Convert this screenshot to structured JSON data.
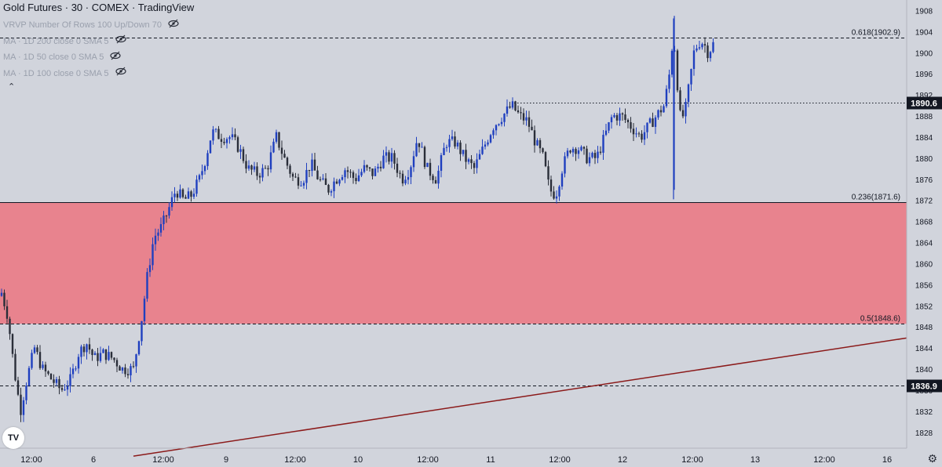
{
  "header": {
    "title": "Gold Futures · 30 · COMEX · TradingView"
  },
  "indicators": [
    {
      "label": "VRVP Number Of Rows 100 Up/Down 70",
      "icon": "eye-off-icon"
    },
    {
      "label": "MA · 1D 200 close 0 SMA 5",
      "icon": "eye-off-icon"
    },
    {
      "label": "MA · 1D 50 close 0 SMA 5",
      "icon": "eye-off-icon"
    },
    {
      "label": "MA · 1D 100 close 0 SMA 5",
      "icon": "eye-off-icon"
    }
  ],
  "logo_text": "TV",
  "colors": {
    "background": "#d1d4dc",
    "candle_up": "#1f3fbf",
    "candle_down": "#2a2e39",
    "zone_fill": "#e8838e",
    "trendline": "#8b1a1a",
    "axis_label_bg": "#131722"
  },
  "chart_data": {
    "type": "candlestick",
    "title": "Gold Futures · 30 · COMEX · TradingView",
    "ylim": [
      1825,
      1910
    ],
    "y_ticks": [
      1828,
      1832,
      1836,
      1840,
      1844,
      1848,
      1852,
      1856,
      1860,
      1864,
      1868,
      1872,
      1876,
      1880,
      1884,
      1888,
      1892,
      1896,
      1900,
      1904,
      1908
    ],
    "xlim": [
      0,
      1155
    ],
    "x_ticks": [
      {
        "x": 40,
        "label": "12:00"
      },
      {
        "x": 119,
        "label": "6"
      },
      {
        "x": 208,
        "label": "12:00"
      },
      {
        "x": 288,
        "label": "9"
      },
      {
        "x": 376,
        "label": "12:00"
      },
      {
        "x": 456,
        "label": "10"
      },
      {
        "x": 545,
        "label": "12:00"
      },
      {
        "x": 625,
        "label": "11"
      },
      {
        "x": 713,
        "label": "12:00"
      },
      {
        "x": 793,
        "label": "12"
      },
      {
        "x": 882,
        "label": "12:00"
      },
      {
        "x": 962,
        "label": "13"
      },
      {
        "x": 1050,
        "label": "12:00"
      },
      {
        "x": 1130,
        "label": "16"
      }
    ],
    "levels": [
      {
        "value": 1902.9,
        "label": "0.618(1902.9)",
        "style": "dashed"
      },
      {
        "value": 1890.6,
        "label": "1890.6",
        "style": "dotted",
        "tag": true,
        "start_x": 655
      },
      {
        "value": 1871.6,
        "label": "0.236(1871.6)",
        "style": "solid"
      },
      {
        "value": 1848.6,
        "label": "0.5(1848.6)",
        "style": "dashed"
      },
      {
        "value": 1836.9,
        "label": "1836.9",
        "style": "dashed",
        "tag": true
      }
    ],
    "zone": {
      "from": 1848.6,
      "to": 1871.6
    },
    "trendline": {
      "points": [
        [
          170,
          1823.5
        ],
        [
          1155,
          1845.9
        ]
      ]
    },
    "path_anchors": [
      [
        2,
        1854.5
      ],
      [
        10,
        1850
      ],
      [
        18,
        1840
      ],
      [
        26,
        1832
      ],
      [
        34,
        1838
      ],
      [
        44,
        1844
      ],
      [
        54,
        1840
      ],
      [
        66,
        1838
      ],
      [
        78,
        1836
      ],
      [
        90,
        1838
      ],
      [
        100,
        1843
      ],
      [
        110,
        1845
      ],
      [
        120,
        1842
      ],
      [
        132,
        1843
      ],
      [
        144,
        1842
      ],
      [
        156,
        1840
      ],
      [
        170,
        1840
      ],
      [
        180,
        1849
      ],
      [
        188,
        1858
      ],
      [
        196,
        1865
      ],
      [
        206,
        1867
      ],
      [
        214,
        1870
      ],
      [
        224,
        1874
      ],
      [
        234,
        1872
      ],
      [
        244,
        1873
      ],
      [
        254,
        1876
      ],
      [
        262,
        1880
      ],
      [
        270,
        1885
      ],
      [
        282,
        1884
      ],
      [
        294,
        1884
      ],
      [
        304,
        1882
      ],
      [
        316,
        1878
      ],
      [
        328,
        1877
      ],
      [
        340,
        1878
      ],
      [
        352,
        1884
      ],
      [
        362,
        1880
      ],
      [
        374,
        1876
      ],
      [
        386,
        1876
      ],
      [
        396,
        1879
      ],
      [
        406,
        1876
      ],
      [
        418,
        1874
      ],
      [
        428,
        1876
      ],
      [
        440,
        1878
      ],
      [
        452,
        1876
      ],
      [
        464,
        1878
      ],
      [
        476,
        1877
      ],
      [
        488,
        1880
      ],
      [
        500,
        1880
      ],
      [
        512,
        1876
      ],
      [
        522,
        1878
      ],
      [
        532,
        1884
      ],
      [
        544,
        1878
      ],
      [
        556,
        1876
      ],
      [
        568,
        1883
      ],
      [
        580,
        1883
      ],
      [
        592,
        1880
      ],
      [
        604,
        1878
      ],
      [
        616,
        1882
      ],
      [
        628,
        1886
      ],
      [
        640,
        1888
      ],
      [
        652,
        1890
      ],
      [
        662,
        1888
      ],
      [
        672,
        1887
      ],
      [
        682,
        1883
      ],
      [
        692,
        1880
      ],
      [
        700,
        1874
      ],
      [
        708,
        1873
      ],
      [
        716,
        1878
      ],
      [
        726,
        1882
      ],
      [
        736,
        1882
      ],
      [
        748,
        1880
      ],
      [
        760,
        1880
      ],
      [
        770,
        1884
      ],
      [
        780,
        1888
      ],
      [
        792,
        1888
      ],
      [
        804,
        1886
      ],
      [
        816,
        1884
      ],
      [
        826,
        1886
      ],
      [
        836,
        1888
      ],
      [
        846,
        1890
      ],
      [
        852,
        1895
      ],
      [
        858,
        1904
      ],
      [
        862,
        1896
      ],
      [
        866,
        1888
      ],
      [
        872,
        1888
      ],
      [
        878,
        1894
      ],
      [
        884,
        1900
      ],
      [
        890,
        1902
      ],
      [
        896,
        1902
      ],
      [
        902,
        1900
      ],
      [
        910,
        1902
      ]
    ],
    "candle_spacing": 3.5,
    "spikes": [
      {
        "x": 858,
        "high": 1906.5,
        "low": 1872.2
      },
      {
        "x": 859,
        "high": 1907,
        "low": 1874
      }
    ]
  }
}
